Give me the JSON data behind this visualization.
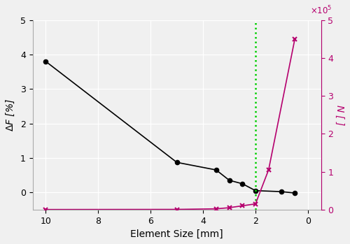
{
  "x_black": [
    10,
    5,
    3.5,
    3,
    2.5,
    2,
    1,
    0.5
  ],
  "y_black": [
    3.8,
    0.87,
    0.65,
    0.35,
    0.25,
    0.05,
    0.02,
    -0.02
  ],
  "x_pink": [
    10,
    5,
    3.5,
    3,
    2.5,
    2,
    1.5,
    0.5
  ],
  "y_pink": [
    200,
    500,
    2000,
    5000,
    10000,
    15000,
    105000,
    450000
  ],
  "vline_x": 2,
  "xlabel": "Element Size [mm]",
  "ylabel_left": "$\\Delta F$ [%]",
  "ylabel_right": "$N$ [ ]",
  "xlim": [
    10.5,
    -0.5
  ],
  "ylim_left": [
    -0.5,
    5
  ],
  "ylim_right": [
    0,
    500000
  ],
  "black_color": "#000000",
  "pink_color": "#b5006e",
  "green_color": "#00cc00",
  "grid_color": "#cccccc",
  "background_color": "#f0f0f0"
}
